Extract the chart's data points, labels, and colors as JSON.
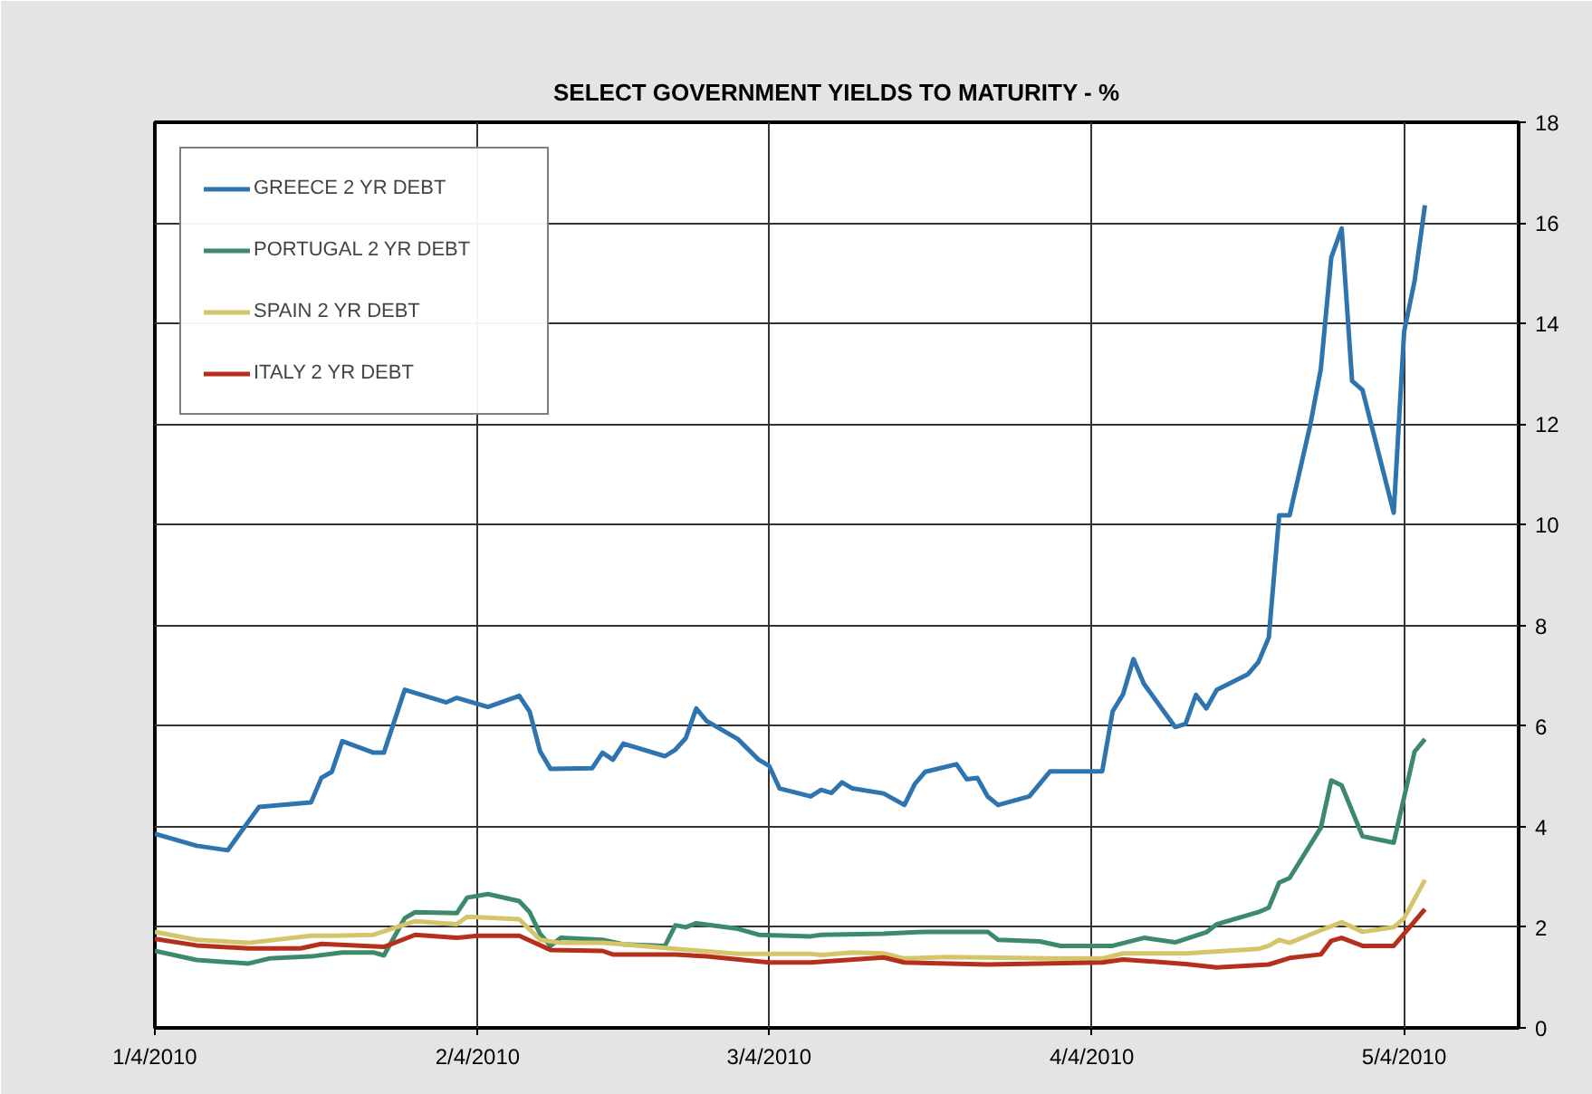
{
  "chart_data": {
    "type": "line",
    "title": "SELECT GOVERNMENT YIELDS TO MATURITY - %",
    "xlim": [
      "2010-01-04",
      "2010-05-15"
    ],
    "xticks": [
      {
        "value": "2010-01-04",
        "label": "1/4/2010"
      },
      {
        "value": "2010-02-04",
        "label": "2/4/2010"
      },
      {
        "value": "2010-03-04",
        "label": "3/4/2010"
      },
      {
        "value": "2010-04-04",
        "label": "4/4/2010"
      },
      {
        "value": "2010-05-04",
        "label": "5/4/2010"
      }
    ],
    "ylim": [
      0,
      18
    ],
    "yticks": [
      0,
      2,
      4,
      6,
      8,
      10,
      12,
      14,
      16,
      18
    ],
    "grid": true,
    "legend": "top left",
    "line_style": "solid",
    "marker": "none",
    "series": [
      {
        "name": "GREECE 2 YR DEBT",
        "color": "#2e75b0",
        "x": [
          "2010-01-04",
          "2010-01-08",
          "2010-01-11",
          "2010-01-14",
          "2010-01-19",
          "2010-01-20",
          "2010-01-21",
          "2010-01-22",
          "2010-01-25",
          "2010-01-26",
          "2010-01-28",
          "2010-02-01",
          "2010-02-02",
          "2010-02-05",
          "2010-02-08",
          "2010-02-09",
          "2010-02-10",
          "2010-02-11",
          "2010-02-15",
          "2010-02-16",
          "2010-02-17",
          "2010-02-18",
          "2010-02-22",
          "2010-02-23",
          "2010-02-24",
          "2010-02-25",
          "2010-02-26",
          "2010-03-01",
          "2010-03-03",
          "2010-03-04",
          "2010-03-05",
          "2010-03-08",
          "2010-03-09",
          "2010-03-10",
          "2010-03-11",
          "2010-03-12",
          "2010-03-15",
          "2010-03-17",
          "2010-03-18",
          "2010-03-19",
          "2010-03-22",
          "2010-03-23",
          "2010-03-24",
          "2010-03-25",
          "2010-03-26",
          "2010-03-29",
          "2010-03-31",
          "2010-04-05",
          "2010-04-06",
          "2010-04-07",
          "2010-04-08",
          "2010-04-09",
          "2010-04-12",
          "2010-04-13",
          "2010-04-14",
          "2010-04-15",
          "2010-04-16",
          "2010-04-19",
          "2010-04-20",
          "2010-04-21",
          "2010-04-22",
          "2010-04-23",
          "2010-04-25",
          "2010-04-26",
          "2010-04-27",
          "2010-04-28",
          "2010-04-29",
          "2010-04-30",
          "2010-05-03",
          "2010-05-04",
          "2010-05-05",
          "2010-05-06"
        ],
        "values": [
          3.86,
          3.62,
          3.53,
          4.39,
          4.48,
          4.97,
          5.09,
          5.7,
          5.47,
          5.47,
          6.72,
          6.47,
          6.56,
          6.38,
          6.6,
          6.29,
          5.5,
          5.15,
          5.16,
          5.47,
          5.33,
          5.65,
          5.4,
          5.53,
          5.76,
          6.35,
          6.1,
          5.74,
          5.33,
          5.21,
          4.76,
          4.6,
          4.73,
          4.67,
          4.88,
          4.76,
          4.66,
          4.43,
          4.85,
          5.09,
          5.24,
          4.94,
          4.97,
          4.6,
          4.43,
          4.6,
          5.1,
          5.1,
          6.29,
          6.63,
          7.33,
          6.84,
          5.98,
          6.04,
          6.62,
          6.35,
          6.72,
          7.03,
          7.27,
          7.76,
          10.19,
          10.19,
          12.0,
          13.1,
          15.31,
          15.89,
          12.86,
          12.68,
          10.24,
          13.84,
          14.84,
          16.35
        ]
      },
      {
        "name": "PORTUGAL 2 YR DEBT",
        "color": "#3d8a6a",
        "x": [
          "2010-01-04",
          "2010-01-08",
          "2010-01-13",
          "2010-01-15",
          "2010-01-19",
          "2010-01-22",
          "2010-01-25",
          "2010-01-26",
          "2010-01-28",
          "2010-01-29",
          "2010-02-02",
          "2010-02-03",
          "2010-02-05",
          "2010-02-08",
          "2010-02-09",
          "2010-02-10",
          "2010-02-11",
          "2010-02-12",
          "2010-02-16",
          "2010-02-18",
          "2010-02-22",
          "2010-02-23",
          "2010-02-24",
          "2010-02-25",
          "2010-03-01",
          "2010-03-03",
          "2010-03-08",
          "2010-03-09",
          "2010-03-15",
          "2010-03-19",
          "2010-03-25",
          "2010-03-26",
          "2010-03-30",
          "2010-04-01",
          "2010-04-06",
          "2010-04-09",
          "2010-04-12",
          "2010-04-15",
          "2010-04-16",
          "2010-04-20",
          "2010-04-21",
          "2010-04-22",
          "2010-04-23",
          "2010-04-26",
          "2010-04-27",
          "2010-04-28",
          "2010-04-30",
          "2010-05-03",
          "2010-05-05",
          "2010-05-06"
        ],
        "values": [
          1.53,
          1.35,
          1.28,
          1.38,
          1.42,
          1.5,
          1.5,
          1.44,
          2.18,
          2.3,
          2.28,
          2.59,
          2.66,
          2.52,
          2.3,
          1.87,
          1.63,
          1.79,
          1.75,
          1.66,
          1.63,
          2.04,
          2.0,
          2.08,
          1.97,
          1.85,
          1.82,
          1.85,
          1.87,
          1.91,
          1.91,
          1.75,
          1.72,
          1.63,
          1.63,
          1.79,
          1.7,
          1.9,
          2.06,
          2.3,
          2.39,
          2.89,
          2.98,
          3.98,
          4.92,
          4.82,
          3.81,
          3.68,
          5.49,
          5.74
        ]
      },
      {
        "name": "SPAIN 2 YR DEBT",
        "color": "#d4c46a",
        "x": [
          "2010-01-04",
          "2010-01-08",
          "2010-01-13",
          "2010-01-19",
          "2010-01-21",
          "2010-01-25",
          "2010-01-29",
          "2010-02-02",
          "2010-02-03",
          "2010-02-08",
          "2010-02-10",
          "2010-02-12",
          "2010-02-16",
          "2010-02-18",
          "2010-02-23",
          "2010-03-01",
          "2010-03-08",
          "2010-03-09",
          "2010-03-12",
          "2010-03-15",
          "2010-03-17",
          "2010-03-21",
          "2010-03-31",
          "2010-04-05",
          "2010-04-07",
          "2010-04-13",
          "2010-04-20",
          "2010-04-21",
          "2010-04-22",
          "2010-04-23",
          "2010-04-26",
          "2010-04-28",
          "2010-04-30",
          "2010-05-03",
          "2010-05-04",
          "2010-05-06"
        ],
        "values": [
          1.91,
          1.75,
          1.69,
          1.83,
          1.83,
          1.85,
          2.12,
          2.06,
          2.21,
          2.16,
          1.75,
          1.69,
          1.69,
          1.66,
          1.57,
          1.47,
          1.47,
          1.45,
          1.5,
          1.48,
          1.38,
          1.41,
          1.38,
          1.38,
          1.48,
          1.48,
          1.57,
          1.63,
          1.75,
          1.69,
          1.94,
          2.1,
          1.91,
          2.0,
          2.18,
          2.94
        ]
      },
      {
        "name": "ITALY 2 YR DEBT",
        "color": "#b5301a",
        "x": [
          "2010-01-04",
          "2010-01-08",
          "2010-01-13",
          "2010-01-18",
          "2010-01-20",
          "2010-01-26",
          "2010-01-29",
          "2010-02-02",
          "2010-02-04",
          "2010-02-08",
          "2010-02-11",
          "2010-02-16",
          "2010-02-17",
          "2010-02-23",
          "2010-02-26",
          "2010-03-04",
          "2010-03-08",
          "2010-03-15",
          "2010-03-17",
          "2010-03-25",
          "2010-04-05",
          "2010-04-07",
          "2010-04-13",
          "2010-04-16",
          "2010-04-21",
          "2010-04-23",
          "2010-04-26",
          "2010-04-27",
          "2010-04-28",
          "2010-04-30",
          "2010-05-03",
          "2010-05-06"
        ],
        "values": [
          1.77,
          1.64,
          1.58,
          1.58,
          1.67,
          1.61,
          1.85,
          1.79,
          1.83,
          1.83,
          1.55,
          1.53,
          1.46,
          1.46,
          1.42,
          1.3,
          1.3,
          1.4,
          1.3,
          1.26,
          1.3,
          1.36,
          1.27,
          1.2,
          1.26,
          1.39,
          1.46,
          1.73,
          1.79,
          1.63,
          1.63,
          2.36
        ]
      }
    ]
  }
}
